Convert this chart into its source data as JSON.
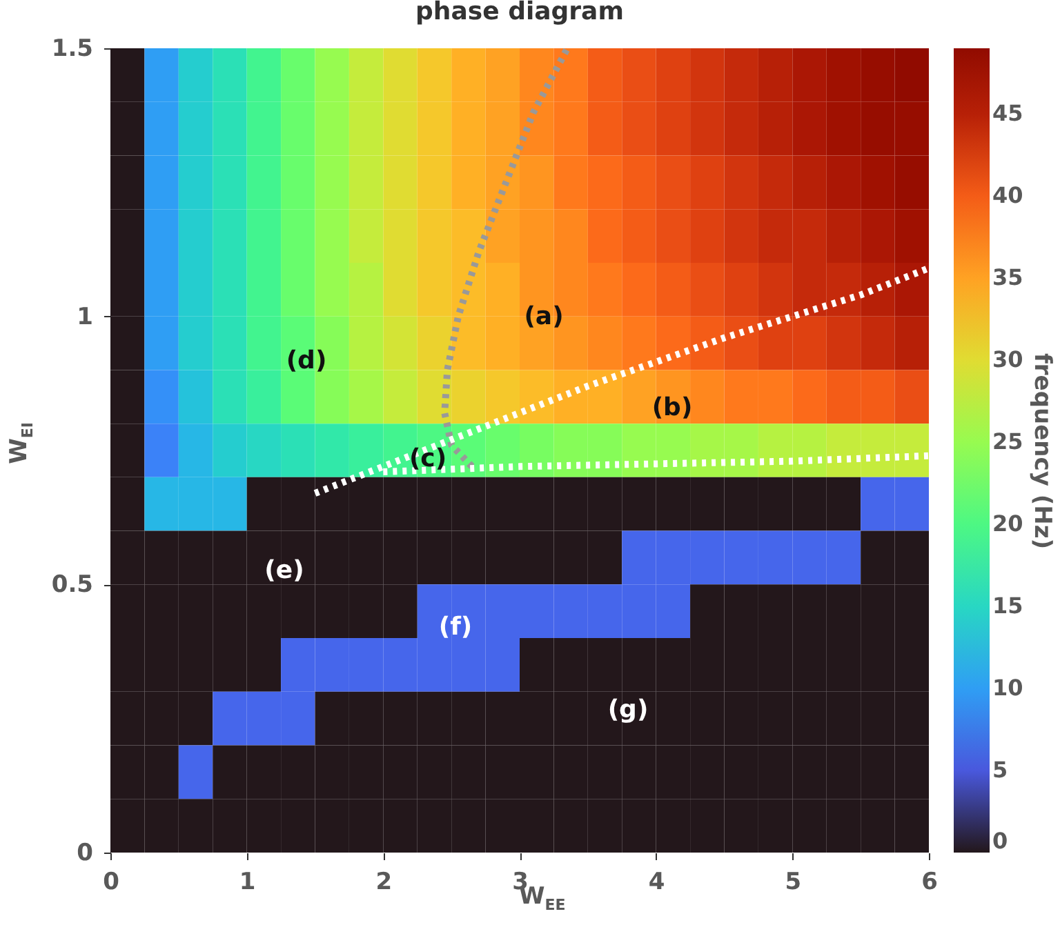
{
  "chart_data": {
    "type": "heatmap",
    "title": "phase diagram",
    "xlabel": "W$_{EE}$",
    "ylabel": "W$_{EI}$",
    "clabel": "frequency (Hz)",
    "x": [
      0.125,
      0.375,
      0.625,
      0.875,
      1.125,
      1.375,
      1.625,
      1.875,
      2.125,
      2.375,
      2.625,
      2.875,
      3.125,
      3.375,
      3.625,
      3.875,
      4.125,
      4.375,
      4.625,
      4.875,
      5.125,
      5.375,
      5.625,
      5.875
    ],
    "y": [
      1.45,
      1.35,
      1.25,
      1.15,
      1.05,
      0.95,
      0.85,
      0.75,
      0.65,
      0.55,
      0.45,
      0.35,
      0.25,
      0.15,
      0.05
    ],
    "cells": [
      [
        0,
        10,
        14,
        16,
        19,
        22,
        25,
        28,
        30,
        32,
        34,
        35,
        37,
        38,
        40,
        41,
        42,
        43,
        44,
        45,
        46,
        47,
        48,
        49
      ],
      [
        0,
        10,
        14,
        16,
        19,
        22,
        25,
        28,
        30,
        32,
        34,
        35,
        37,
        38,
        40,
        41,
        42,
        43,
        44,
        45,
        46,
        47,
        48,
        48
      ],
      [
        0,
        10,
        14,
        16,
        19,
        22,
        25,
        28,
        30,
        32,
        34,
        35,
        36,
        38,
        39,
        40,
        41,
        42,
        43,
        44,
        45,
        46,
        47,
        48
      ],
      [
        0,
        10,
        14,
        16,
        19,
        22,
        25,
        28,
        30,
        32,
        33,
        35,
        36,
        37,
        39,
        40,
        41,
        42,
        43,
        44,
        44,
        45,
        46,
        47
      ],
      [
        0,
        10,
        14,
        16,
        19,
        22,
        25,
        27,
        30,
        32,
        33,
        34,
        36,
        37,
        38,
        39,
        40,
        41,
        42,
        43,
        44,
        44,
        45,
        46
      ],
      [
        0,
        10,
        14,
        16,
        19,
        21,
        24,
        27,
        29,
        31,
        33,
        34,
        35,
        36,
        37,
        38,
        39,
        40,
        41,
        42,
        42,
        43,
        44,
        45
      ],
      [
        0,
        9,
        13,
        16,
        18,
        21,
        24,
        26,
        28,
        30,
        31,
        32,
        33,
        34,
        34,
        35,
        36,
        37,
        38,
        38,
        39,
        40,
        40,
        41
      ],
      [
        0,
        8,
        12,
        14,
        15,
        16,
        17,
        18,
        19,
        20,
        21,
        22,
        23,
        24,
        24,
        25,
        25,
        26,
        26,
        27,
        27,
        28,
        28,
        28
      ],
      [
        0,
        12,
        12,
        12,
        0,
        0,
        0,
        0,
        0,
        0,
        0,
        0,
        0,
        0,
        0,
        0,
        0,
        0,
        0,
        0,
        0,
        0,
        6,
        6
      ],
      [
        0,
        0,
        0,
        0,
        0,
        0,
        0,
        0,
        0,
        0,
        0,
        0,
        0,
        0,
        0,
        6,
        6,
        6,
        6,
        6,
        6,
        6,
        0,
        0
      ],
      [
        0,
        0,
        0,
        0,
        0,
        0,
        0,
        0,
        0,
        6,
        6,
        6,
        6,
        6,
        6,
        6,
        6,
        0,
        0,
        0,
        0,
        0,
        0,
        0
      ],
      [
        0,
        0,
        0,
        0,
        0,
        6,
        6,
        6,
        6,
        6,
        6,
        6,
        0,
        0,
        0,
        0,
        0,
        0,
        0,
        0,
        0,
        0,
        0,
        0
      ],
      [
        0,
        0,
        0,
        6,
        6,
        6,
        0,
        0,
        0,
        0,
        0,
        0,
        0,
        0,
        0,
        0,
        0,
        0,
        0,
        0,
        0,
        0,
        0,
        0
      ],
      [
        0,
        0,
        6,
        0,
        0,
        0,
        0,
        0,
        0,
        0,
        0,
        0,
        0,
        0,
        0,
        0,
        0,
        0,
        0,
        0,
        0,
        0,
        0,
        0
      ],
      [
        0,
        0,
        0,
        0,
        0,
        0,
        0,
        0,
        0,
        0,
        0,
        0,
        0,
        0,
        0,
        0,
        0,
        0,
        0,
        0,
        0,
        0,
        0,
        0
      ]
    ],
    "clim": [
      0,
      49
    ],
    "cticks": [
      0,
      5,
      10,
      15,
      20,
      25,
      30,
      35,
      40,
      45
    ],
    "xlim": [
      0,
      6
    ],
    "xticks": [
      0,
      1,
      2,
      3,
      4,
      5,
      6
    ],
    "ylim": [
      0,
      1.5
    ],
    "yticks": [
      0,
      0.5,
      1,
      1.5
    ],
    "grid": false,
    "series": [
      {
        "type": "line",
        "color": "#999999",
        "line_style": "dotted",
        "x": [
          2.65,
          2.5,
          2.45,
          2.47,
          2.55,
          2.7,
          2.9,
          3.1,
          3.35
        ],
        "values": [
          0.72,
          0.76,
          0.82,
          0.9,
          1.0,
          1.12,
          1.25,
          1.38,
          1.5
        ]
      },
      {
        "type": "line",
        "color": "#ffffff",
        "line_style": "dotted",
        "x": [
          1.5,
          2.5,
          3.5,
          4.5,
          5.5,
          6
        ],
        "values": [
          0.67,
          0.77,
          0.87,
          0.96,
          1.04,
          1.09
        ]
      },
      {
        "type": "line",
        "color": "#ffffff",
        "line_style": "dotted",
        "x": [
          2,
          3,
          4,
          5,
          6
        ],
        "values": [
          0.71,
          0.72,
          0.725,
          0.73,
          0.74
        ]
      }
    ],
    "annotations": [
      "(a)",
      "(b)",
      "(c)",
      "(d)",
      "(e)",
      "(f)",
      "(g)"
    ]
  }
}
